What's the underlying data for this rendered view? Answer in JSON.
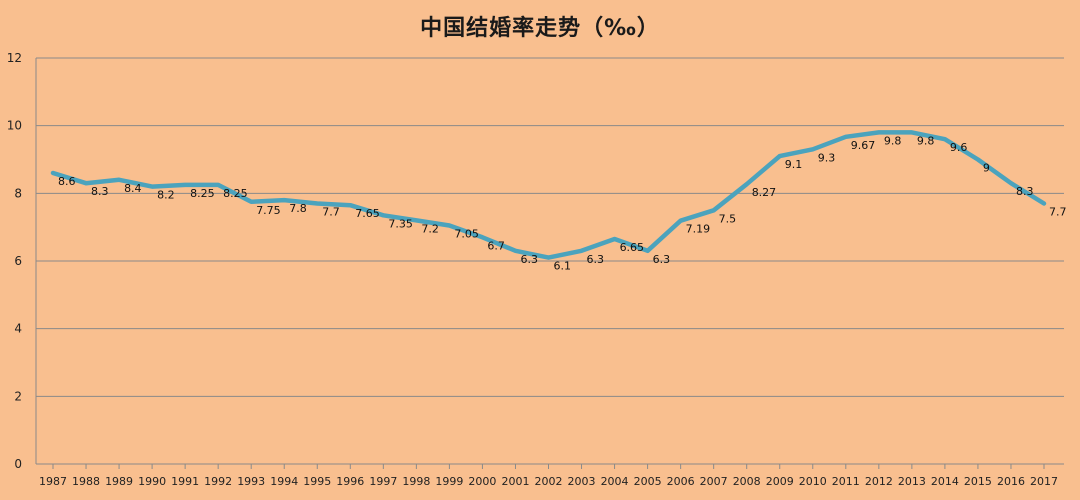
{
  "chart_data": {
    "type": "line",
    "title": "中国结婚率走势（‰）",
    "xlabel": "",
    "ylabel": "",
    "ylim": [
      0,
      12
    ],
    "yticks": [
      0,
      2,
      4,
      6,
      8,
      10,
      12
    ],
    "grid": true,
    "x": [
      "1987",
      "1988",
      "1989",
      "1990",
      "1991",
      "1992",
      "1993",
      "1994",
      "1995",
      "1996",
      "1997",
      "1998",
      "1999",
      "2000",
      "2001",
      "2002",
      "2003",
      "2004",
      "2005",
      "2006",
      "2007",
      "2008",
      "2009",
      "2010",
      "2011",
      "2012",
      "2013",
      "2014",
      "2015",
      "2016",
      "2017"
    ],
    "series": [
      {
        "values": [
          8.6,
          8.3,
          8.4,
          8.2,
          8.25,
          8.25,
          7.75,
          7.8,
          7.7,
          7.65,
          7.35,
          7.2,
          7.05,
          6.7,
          6.3,
          6.1,
          6.3,
          6.65,
          6.3,
          7.19,
          7.5,
          8.27,
          9.1,
          9.3,
          9.67,
          9.8,
          9.8,
          9.6,
          9,
          8.3,
          7.7
        ],
        "labels": [
          "8.6",
          "8.3",
          "8.4",
          "8.2",
          "8.25",
          "8.25",
          "7.75",
          "7.8",
          "7.7",
          "7.65",
          "7.35",
          "7.2",
          "7.05",
          "6.7",
          "6.3",
          "6.1",
          "6.3",
          "6.65",
          "6.3",
          "7.19",
          "7.5",
          "8.27",
          "9.1",
          "9.3",
          "9.67",
          "9.8",
          "9.8",
          "9.6",
          "9",
          "8.3",
          "7.7"
        ],
        "color": "#4ba3bd"
      }
    ]
  }
}
